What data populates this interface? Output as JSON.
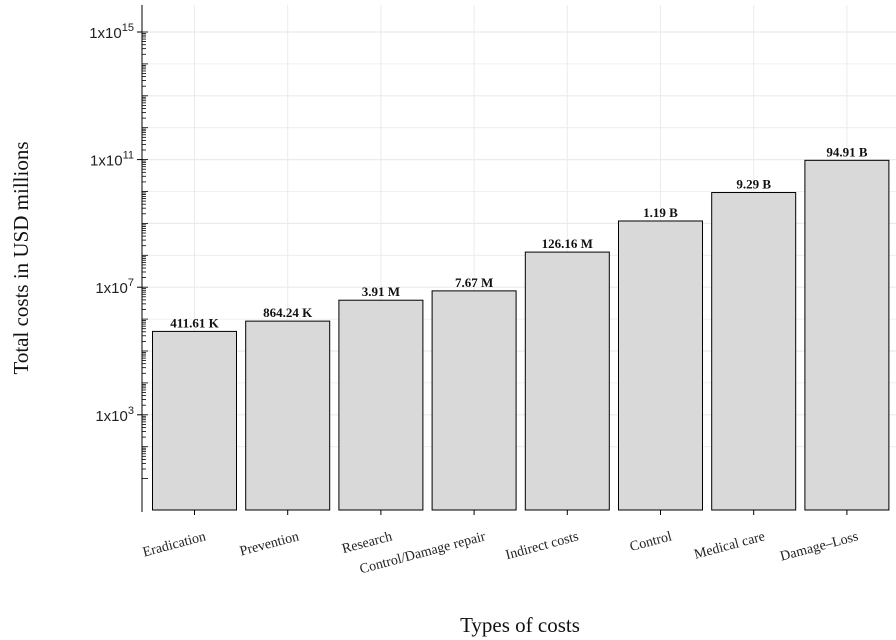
{
  "chart_data": {
    "type": "bar",
    "title": "",
    "xlabel": "Types of costs",
    "ylabel": "Total costs in USD millions",
    "y_scale": "log10",
    "ylim": [
      10,
      1000000000000000.0
    ],
    "y_ticks": [
      {
        "value": 1000000000000000.0,
        "base": "1x10",
        "exp": "15"
      },
      {
        "value": 100000000000.0,
        "base": "1x10",
        "exp": "11"
      },
      {
        "value": 10000000.0,
        "base": "1x10",
        "exp": "7"
      },
      {
        "value": 1000.0,
        "base": "1x10",
        "exp": "3"
      }
    ],
    "grid": true,
    "colors": {
      "bar_fill": "#d9d9d9",
      "bar_stroke": "#000000",
      "grid": "#ebebeb"
    },
    "categories": [
      "Eradication",
      "Prevention",
      "Research",
      "Control/Damage repair",
      "Indirect costs",
      "Control",
      "Medical care",
      "Damage–Loss"
    ],
    "values": [
      411610,
      864240,
      3910000,
      7670000,
      126160000,
      1190000000,
      9290000000,
      94910000000
    ],
    "data_labels": [
      "411.61 K",
      "864.24 K",
      "3.91 M",
      "7.67 M",
      "126.16 M",
      "1.19 B",
      "9.29 B",
      "94.91 B"
    ]
  }
}
